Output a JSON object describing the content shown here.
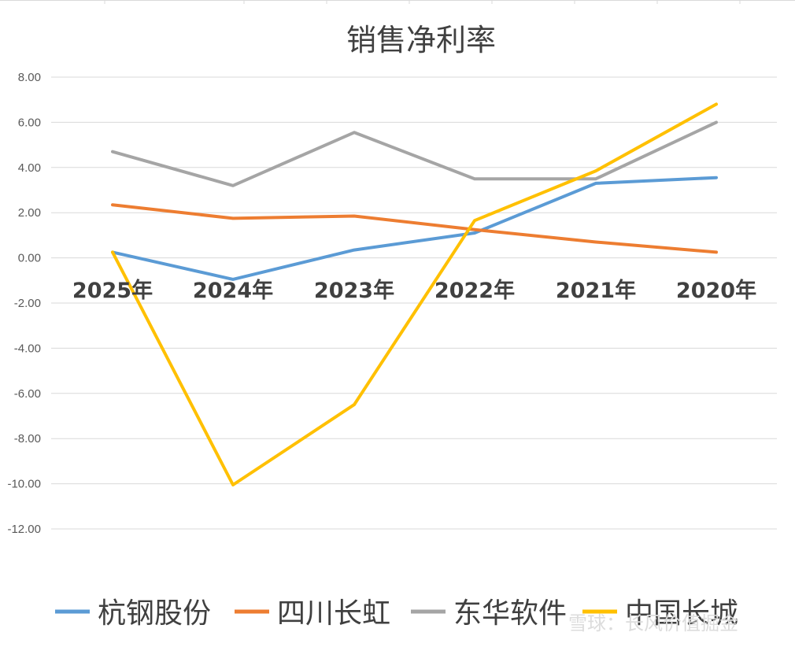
{
  "chart_data": {
    "type": "line",
    "title": "销售净利率",
    "categories": [
      "2025年",
      "2024年",
      "2023年",
      "2022年",
      "2021年",
      "2020年"
    ],
    "ylim": [
      -12,
      8
    ],
    "yticks": [
      "8.00",
      "6.00",
      "4.00",
      "2.00",
      "0.00",
      "-2.00",
      "-4.00",
      "-6.00",
      "-8.00",
      "-10.00",
      "-12.00"
    ],
    "grid": true,
    "legend_position": "bottom",
    "series": [
      {
        "name": "杭钢股份",
        "color": "#5B9BD5",
        "values": [
          0.25,
          -0.95,
          0.35,
          1.1,
          3.3,
          3.55
        ]
      },
      {
        "name": "四川长虹",
        "color": "#ED7D31",
        "values": [
          2.35,
          1.75,
          1.85,
          1.25,
          0.7,
          0.25
        ]
      },
      {
        "name": "东华软件",
        "color": "#A5A5A5",
        "values": [
          4.7,
          3.2,
          5.55,
          3.5,
          3.5,
          6.0
        ]
      },
      {
        "name": "中国长城",
        "color": "#FFC000",
        "values": [
          0.25,
          -10.05,
          -6.5,
          1.65,
          3.85,
          6.8
        ]
      }
    ]
  },
  "watermark": "雪球：长风价值掘金"
}
